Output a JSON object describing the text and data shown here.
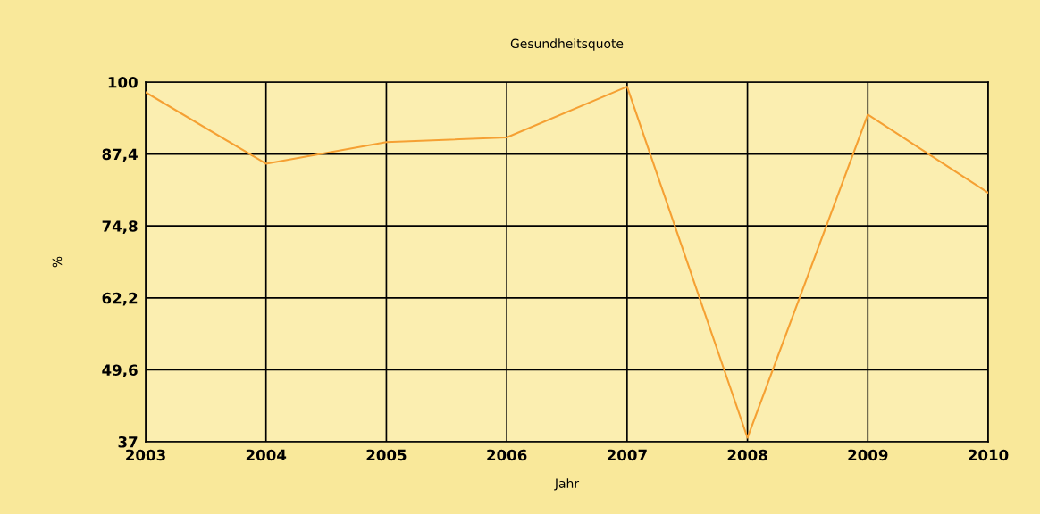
{
  "chart_data": {
    "type": "line",
    "title": "Gesundheitsquote",
    "xlabel": "Jahr",
    "ylabel": "%",
    "categories": [
      "2003",
      "2004",
      "2005",
      "2006",
      "2007",
      "2008",
      "2009",
      "2010"
    ],
    "series": [
      {
        "color": "#f5a033",
        "values": [
          98.2,
          85.7,
          89.5,
          90.3,
          99.2,
          37.7,
          94.3,
          80.6
        ]
      }
    ],
    "ylim": [
      37,
      100
    ],
    "yticks": [
      {
        "value": 37,
        "label": "37"
      },
      {
        "value": 49.6,
        "label": "49,6"
      },
      {
        "value": 62.2,
        "label": "62,2"
      },
      {
        "value": 74.8,
        "label": "74,8"
      },
      {
        "value": 87.4,
        "label": "87,4"
      },
      {
        "value": 100,
        "label": "100"
      }
    ],
    "grid": true,
    "legend": false,
    "marker": "none",
    "line_style": "solid"
  }
}
